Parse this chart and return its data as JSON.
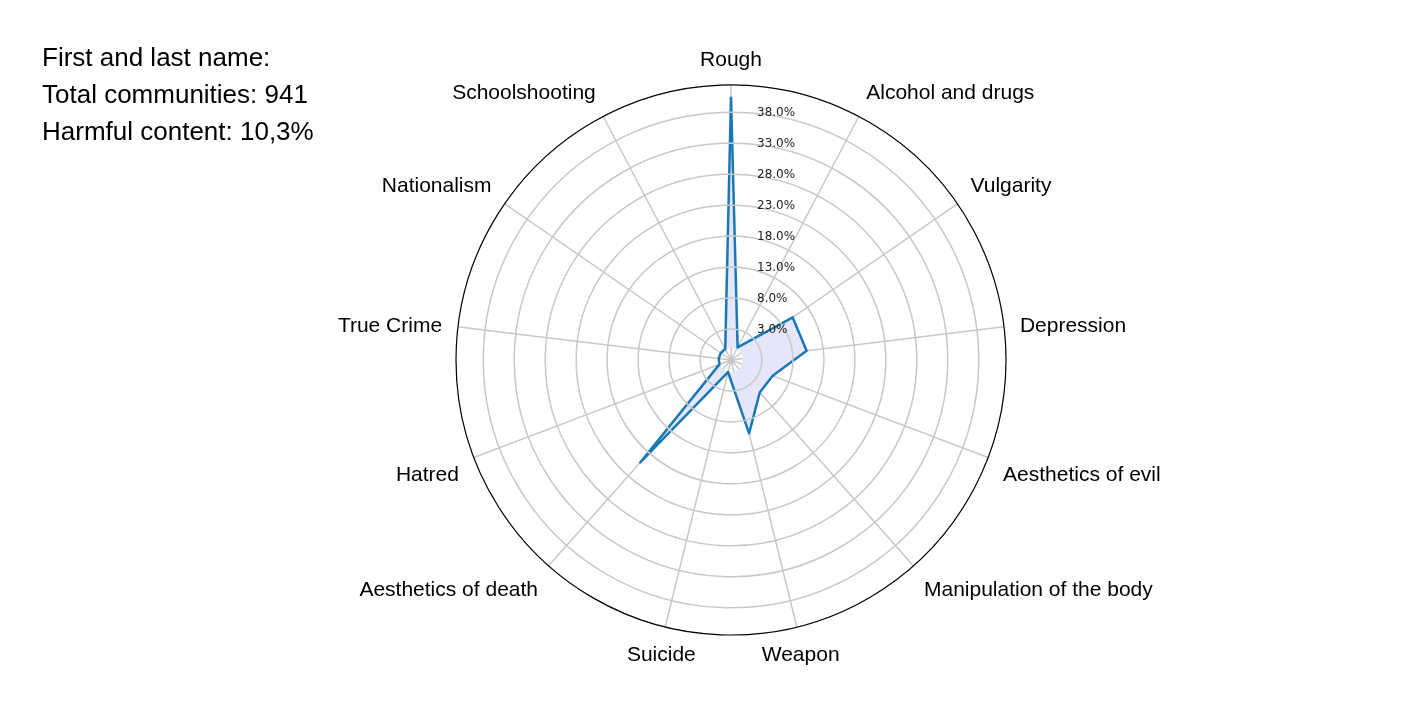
{
  "chart_data": {
    "type": "radar",
    "annotations": [
      "First and last name:",
      "Total communities: 941",
      "Harmful content: 10,3%"
    ],
    "categories": [
      "Rough",
      "Alcohol and drugs",
      "Vulgarity",
      "Depression",
      "Aesthetics of evil",
      "Manipulation of the body",
      "Weapon",
      "Suicide",
      "Aesthetics of death",
      "Hatred",
      "True Crime",
      "Nationalism",
      "Schoolshooting"
    ],
    "series": [
      {
        "color": "#1a78b4",
        "values": [
          40.5,
          0.3,
          10.1,
          10.3,
          5.2,
          5.0,
          10.2,
          0,
          20.1,
          0,
          0,
          0,
          0
        ]
      }
    ],
    "ylim": [
      -2,
      42.4
    ],
    "yticks": [
      {
        "value": 3,
        "label": "3.0%"
      },
      {
        "value": 8,
        "label": "8.0%"
      },
      {
        "value": 13,
        "label": "13.0%"
      },
      {
        "value": 18,
        "label": "18.0%"
      },
      {
        "value": 23,
        "label": "23.0%"
      },
      {
        "value": 28,
        "label": "28.0%"
      },
      {
        "value": 33,
        "label": "33.0%"
      },
      {
        "value": 38,
        "label": "38.0%"
      }
    ],
    "grid": true,
    "marker": "none",
    "line_style": "solid"
  }
}
